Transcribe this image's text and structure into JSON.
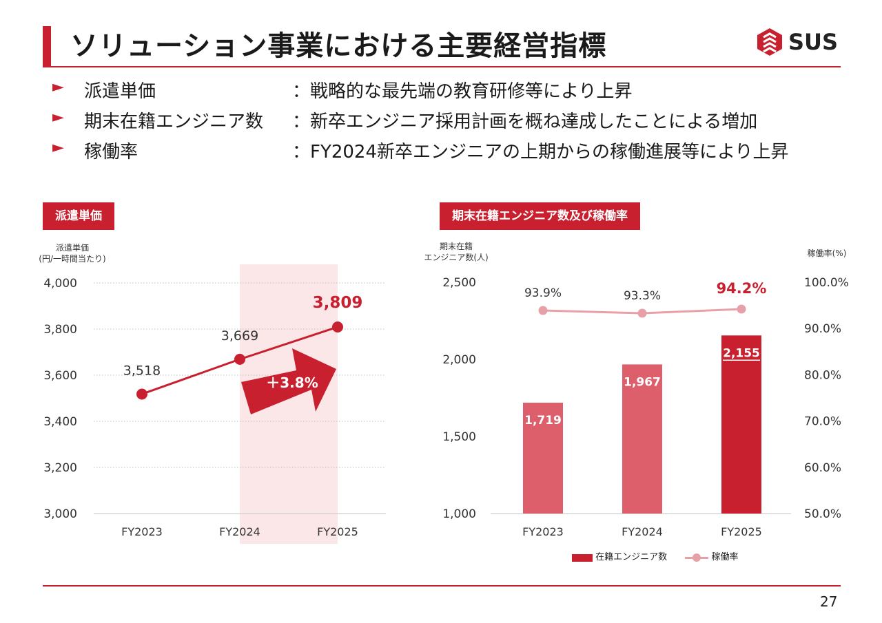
{
  "slide": {
    "title": "ソリューション事業における主要経営指標",
    "logo_text": "SUS",
    "page_number": "27",
    "accent": "#c8202f"
  },
  "bullets": [
    {
      "label": "派遣単価",
      "desc": "：戦略的な最先端の教育研修等により上昇"
    },
    {
      "label": "期末在籍エンジニア数",
      "desc": "：新卒エンジニア採用計画を概ね達成したことによる増加"
    },
    {
      "label": "稼働率",
      "desc": "：FY2024新卒エンジニアの上期からの稼働進展等により上昇"
    }
  ],
  "left_panel": {
    "label": "派遣単価",
    "axis_title_line1": "派遣単価",
    "axis_title_line2": "(円/一時間当たり)",
    "growth_label": "＋3.8%"
  },
  "right_panel": {
    "label": "期末在籍エンジニア数及び稼働率",
    "left_axis_title_line1": "期末在籍",
    "left_axis_title_line2": "エンジニア数(人)",
    "right_axis_title": "稼働率(%)",
    "legend_bar": "在籍エンジニア数",
    "legend_line": "稼働率"
  },
  "chart_data": [
    {
      "type": "line",
      "title": "派遣単価",
      "ylabel": "派遣単価(円/一時間当たり)",
      "categories": [
        "FY2023",
        "FY2024",
        "FY2025"
      ],
      "values": [
        3518,
        3669,
        3809
      ],
      "value_labels": [
        "3,518",
        "3,669",
        "3,809"
      ],
      "ylim": [
        3000,
        4000
      ],
      "yticks": [
        3000,
        3200,
        3400,
        3600,
        3800,
        4000
      ],
      "ytick_labels": [
        "3,000",
        "3,200",
        "3,400",
        "3,600",
        "3,800",
        "4,000"
      ],
      "highlight_category": "FY2025",
      "annotation": "＋3.8%",
      "grid": true
    },
    {
      "type": "bar",
      "title": "期末在籍エンジニア数及び稼働率",
      "categories": [
        "FY2023",
        "FY2024",
        "FY2025"
      ],
      "series": [
        {
          "name": "在籍エンジニア数",
          "values": [
            1719,
            1967,
            2155
          ],
          "labels": [
            "1,719",
            "1,967",
            "2,155"
          ],
          "axis": "left"
        },
        {
          "name": "稼働率",
          "values": [
            93.9,
            93.3,
            94.2
          ],
          "labels": [
            "93.9%",
            "93.3%",
            "94.2%"
          ],
          "axis": "right",
          "type": "line"
        }
      ],
      "ylim_left": [
        1000,
        2500
      ],
      "yticks_left": [
        1000,
        1500,
        2000,
        2500
      ],
      "ytick_labels_left": [
        "1,000",
        "1,500",
        "2,000",
        "2,500"
      ],
      "ylim_right": [
        50,
        100
      ],
      "yticks_right": [
        50,
        60,
        70,
        80,
        90,
        100
      ],
      "ytick_labels_right": [
        "50.0%",
        "60.0%",
        "70.0%",
        "80.0%",
        "90.0%",
        "100.0%"
      ],
      "legend": "bottom",
      "colors": {
        "bar": "#dc5f6b",
        "bar_highlight": "#c8202f",
        "line": "#e8a0a8"
      }
    }
  ]
}
